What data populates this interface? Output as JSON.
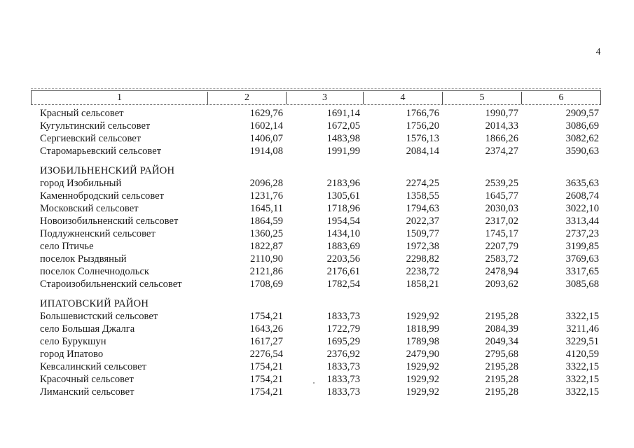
{
  "page": {
    "number": "4"
  },
  "colors": {
    "background": "#ffffff",
    "text": "#1b1b1b",
    "table_border": "#4a4a4a",
    "dashed_border": "#a9a9a9"
  },
  "table": {
    "columns": [
      "1",
      "2",
      "3",
      "4",
      "5",
      "6"
    ],
    "groups": [
      {
        "header": "",
        "rows": [
          {
            "name": "Красный сельсовет",
            "values": [
              "1629,76",
              "1691,14",
              "1766,76",
              "1990,77",
              "2909,57"
            ]
          },
          {
            "name": "Кугультинский сельсовет",
            "values": [
              "1602,14",
              "1672,05",
              "1756,20",
              "2014,33",
              "3086,69"
            ]
          },
          {
            "name": "Сергиевский сельсовет",
            "values": [
              "1406,07",
              "1483,98",
              "1576,13",
              "1866,26",
              "3082,62"
            ]
          },
          {
            "name": "Старомарьевский сельсовет",
            "values": [
              "1914,08",
              "1991,99",
              "2084,14",
              "2374,27",
              "3590,63"
            ]
          }
        ]
      },
      {
        "header": "ИЗОБИЛЬНЕНСКИЙ РАЙОН",
        "rows": [
          {
            "name": "город Изобильный",
            "values": [
              "2096,28",
              "2183,96",
              "2274,25",
              "2539,25",
              "3635,63"
            ]
          },
          {
            "name": "Каменнобродский сельсовет",
            "values": [
              "1231,76",
              "1305,61",
              "1358,55",
              "1645,77",
              "2608,74"
            ]
          },
          {
            "name": "Московский сельсовет",
            "values": [
              "1645,11",
              "1718,96",
              "1794,63",
              "2030,03",
              "3022,10"
            ]
          },
          {
            "name": "Новоизобильненский сельсовет",
            "values": [
              "1864,59",
              "1954,54",
              "2022,37",
              "2317,02",
              "3313,44"
            ]
          },
          {
            "name": "Подлужненский сельсовет",
            "values": [
              "1360,25",
              "1434,10",
              "1509,77",
              "1745,17",
              "2737,23"
            ]
          },
          {
            "name": "село Птичье",
            "values": [
              "1822,87",
              "1883,69",
              "1972,38",
              "2207,79",
              "3199,85"
            ]
          },
          {
            "name": "поселок Рыздвяный",
            "values": [
              "2110,90",
              "2203,56",
              "2298,82",
              "2583,72",
              "3769,63"
            ]
          },
          {
            "name": "поселок Солнечнодольск",
            "values": [
              "2121,86",
              "2176,61",
              "2238,72",
              "2478,94",
              "3317,65"
            ]
          },
          {
            "name": "Староизобильненский сельсовет",
            "values": [
              "1708,69",
              "1782,54",
              "1858,21",
              "2093,62",
              "3085,68"
            ]
          }
        ]
      },
      {
        "header": "ИПАТОВСКИЙ РАЙОН",
        "rows": [
          {
            "name": "Большевистский сельсовет",
            "values": [
              "1754,21",
              "1833,73",
              "1929,92",
              "2195,28",
              "3322,15"
            ]
          },
          {
            "name": "село Большая Джалга",
            "values": [
              "1643,26",
              "1722,79",
              "1818,99",
              "2084,39",
              "3211,46"
            ]
          },
          {
            "name": "село Бурукшун",
            "values": [
              "1617,27",
              "1695,29",
              "1789,98",
              "2049,34",
              "3229,51"
            ]
          },
          {
            "name": "город Ипатово",
            "values": [
              "2276,54",
              "2376,92",
              "2479,90",
              "2795,68",
              "4120,59"
            ]
          },
          {
            "name": "Кевсалинский сельсовет",
            "values": [
              "1754,21",
              "1833,73",
              "1929,92",
              "2195,28",
              "3322,15"
            ]
          },
          {
            "name": "Красочный сельсовет",
            "values": [
              "1754,21",
              "1833,73",
              "1929,92",
              "2195,28",
              "3322,15"
            ]
          },
          {
            "name": "Лиманский сельсовет",
            "values": [
              "1754,21",
              "1833,73",
              "1929,92",
              "2195,28",
              "3322,15"
            ]
          }
        ]
      }
    ]
  }
}
